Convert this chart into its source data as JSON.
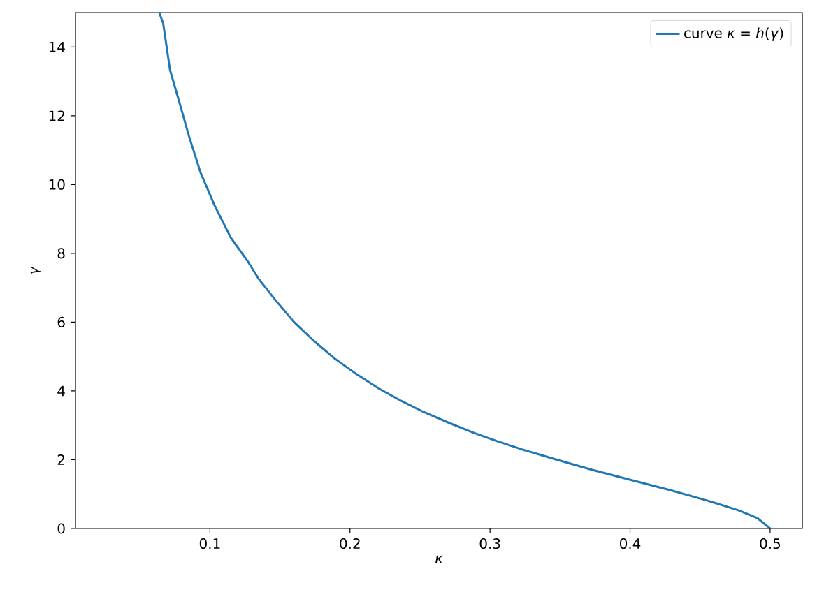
{
  "chart_data": {
    "type": "line",
    "xlabel": "*κ*",
    "ylabel": "*γ*",
    "xlim": [
      0.004,
      0.523
    ],
    "ylim": [
      0,
      15
    ],
    "xticks": [
      0.1,
      0.2,
      0.3,
      0.4,
      0.5
    ],
    "yticks": [
      0,
      2,
      4,
      6,
      8,
      10,
      12,
      14
    ],
    "grid": false,
    "legend": "top right",
    "series": [
      {
        "name": "curve *κ* = *h*(*γ*)",
        "color": "#1f77b4",
        "x": [
          0.0638,
          0.0666,
          0.0715,
          0.0782,
          0.0848,
          0.0932,
          0.1031,
          0.1148,
          0.1273,
          0.1346,
          0.1472,
          0.1601,
          0.1743,
          0.1888,
          0.2046,
          0.2202,
          0.2366,
          0.253,
          0.2708,
          0.2886,
          0.305,
          0.3228,
          0.346,
          0.3734,
          0.4007,
          0.4281,
          0.4554,
          0.4773,
          0.491,
          0.5
        ],
        "values": [
          15,
          14.69,
          13.33,
          12.39,
          11.44,
          10.36,
          9.41,
          8.46,
          7.75,
          7.27,
          6.62,
          6.0,
          5.45,
          4.95,
          4.49,
          4.08,
          3.71,
          3.38,
          3.07,
          2.78,
          2.54,
          2.3,
          2.02,
          1.7,
          1.41,
          1.12,
          0.81,
          0.53,
          0.3,
          0
        ]
      }
    ]
  }
}
